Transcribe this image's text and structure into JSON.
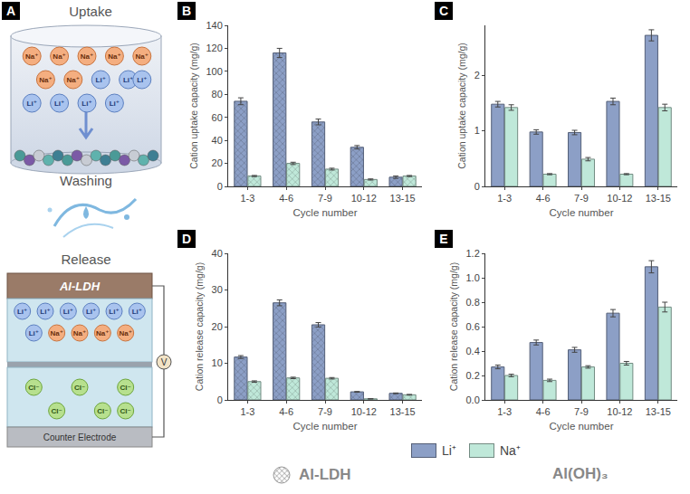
{
  "panel_a": {
    "letter": "A",
    "steps": [
      "Uptake",
      "Washing",
      "Release"
    ],
    "uptake_ions": [
      "Na⁺",
      "Na⁺",
      "Na⁺",
      "Na⁺",
      "Na⁺",
      "Na⁺",
      "Na⁺",
      "Li⁺",
      "Li⁺",
      "Li⁺",
      "Li⁺",
      "Li⁺",
      "Li⁺",
      "Li⁺"
    ],
    "release_cations": [
      "Li⁺",
      "Li⁺",
      "Li⁺",
      "Li⁺",
      "Li⁺",
      "Li⁺",
      "Li⁺",
      "Na⁺",
      "Na⁺",
      "Na⁺",
      "Na⁺"
    ],
    "release_anions": [
      "Cl⁻",
      "Cl⁻",
      "Cl⁻",
      "Cl⁻",
      "Cl⁻",
      "Cl⁻"
    ],
    "electrode": "Al-LDH",
    "voltmeter": "V",
    "counter_electrode": "Counter Electrode"
  },
  "chart_data": [
    {
      "panel": "B",
      "type": "bar",
      "marker": "x",
      "grid": false,
      "x_label": "Cycle number",
      "y_label": "Cation uptake capacity (mg/g)",
      "categories": [
        "1-3",
        "4-6",
        "7-9",
        "10-12",
        "13-15"
      ],
      "ylim": [
        0,
        140
      ],
      "yticks": [
        0,
        20,
        40,
        60,
        80,
        100,
        120,
        140
      ],
      "series": [
        {
          "name": "Li⁺",
          "color": "#8c9fc6",
          "values": [
            74,
            116,
            56,
            34,
            8
          ],
          "errors": [
            3,
            4,
            2.5,
            1.5,
            1
          ]
        },
        {
          "name": "Na⁺",
          "color": "#bfe8d9",
          "values": [
            9,
            20,
            15,
            6,
            9
          ],
          "errors": [
            0.5,
            1,
            0.8,
            0.5,
            0.5
          ]
        }
      ]
    },
    {
      "panel": "C",
      "type": "bar",
      "marker": "solid",
      "grid": false,
      "x_label": "Cycle number",
      "y_label": "Cation uptake capacity (mg/g)",
      "categories": [
        "1-3",
        "4-6",
        "7-9",
        "10-12",
        "13-15"
      ],
      "ylim": [
        0,
        2.9
      ],
      "yticks": [
        0,
        1,
        2
      ],
      "series": [
        {
          "name": "Li⁺",
          "color": "#8c9fc6",
          "values": [
            1.48,
            0.98,
            0.97,
            1.53,
            2.72
          ],
          "errors": [
            0.05,
            0.04,
            0.04,
            0.06,
            0.1
          ]
        },
        {
          "name": "Na⁺",
          "color": "#bfe8d9",
          "values": [
            1.42,
            0.22,
            0.49,
            0.22,
            1.42
          ],
          "errors": [
            0.05,
            0.01,
            0.03,
            0.01,
            0.06
          ]
        }
      ]
    },
    {
      "panel": "D",
      "type": "bar",
      "marker": "x",
      "grid": false,
      "x_label": "Cycle number",
      "y_label": "Cation release capacity (mg/g)",
      "categories": [
        "1-3",
        "4-6",
        "7-9",
        "10-12",
        "13-15"
      ],
      "ylim": [
        0,
        40
      ],
      "yticks": [
        0,
        10,
        20,
        30,
        40
      ],
      "series": [
        {
          "name": "Li⁺",
          "color": "#8c9fc6",
          "values": [
            11.7,
            26.5,
            20.5,
            2.2,
            1.8
          ],
          "errors": [
            0.4,
            0.8,
            0.6,
            0.1,
            0.1
          ]
        },
        {
          "name": "Na⁺",
          "color": "#bfe8d9",
          "values": [
            5,
            6,
            5.9,
            0.3,
            1.4
          ],
          "errors": [
            0.2,
            0.2,
            0.2,
            0.05,
            0.1
          ]
        }
      ]
    },
    {
      "panel": "E",
      "type": "bar",
      "marker": "solid",
      "grid": false,
      "x_label": "Cycle number",
      "y_label": "Cation release capacity (mg/g)",
      "categories": [
        "1-3",
        "4-6",
        "7-9",
        "10-12",
        "13-15"
      ],
      "ylim": [
        0,
        1.2
      ],
      "yticks": [
        {
          "value": 0,
          "label": "0.0"
        },
        {
          "value": 0.2,
          "label": "0.2"
        },
        {
          "value": 0.4,
          "label": "0.4"
        },
        {
          "value": 0.6,
          "label": "0.6"
        },
        {
          "value": 0.8,
          "label": "0.8"
        },
        {
          "value": 1,
          "label": "1.0"
        },
        {
          "value": 1.2,
          "label": "1.2"
        }
      ],
      "series": [
        {
          "name": "Li⁺",
          "color": "#8c9fc6",
          "values": [
            0.27,
            0.47,
            0.41,
            0.71,
            1.09
          ],
          "errors": [
            0.015,
            0.02,
            0.02,
            0.03,
            0.05
          ]
        },
        {
          "name": "Na⁺",
          "color": "#bfe8d9",
          "values": [
            0.2,
            0.16,
            0.27,
            0.3,
            0.76
          ],
          "errors": [
            0.01,
            0.01,
            0.01,
            0.015,
            0.04
          ]
        }
      ]
    }
  ],
  "materials": [
    {
      "name": "Al-LDH",
      "marker": "x"
    },
    {
      "name": "Al(OH)₃",
      "marker": "solid"
    }
  ]
}
